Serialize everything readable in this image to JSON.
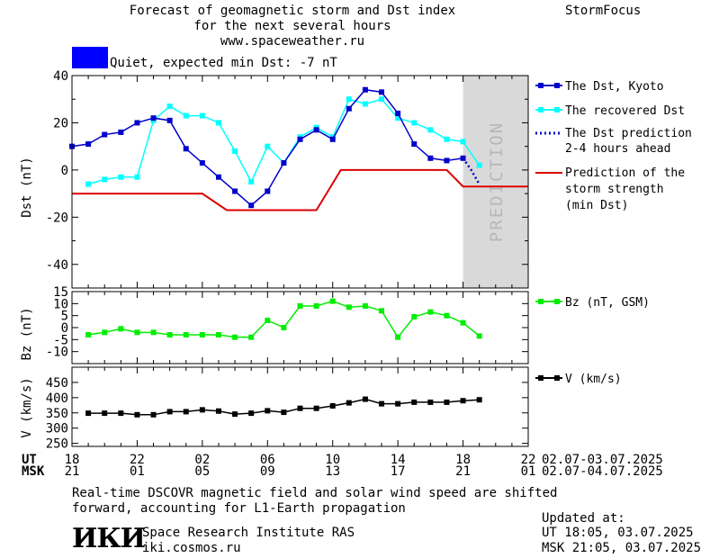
{
  "header": {
    "title_line1": "Forecast of geomagnetic storm and Dst index",
    "title_line2": "for the next several hours",
    "url": "www.spaceweather.ru",
    "brand": "StormFocus",
    "status_text": "Quiet, expected min Dst: -7 nT",
    "status_color": "#0000ff"
  },
  "prediction_label": "PREDICTION",
  "legend": {
    "dst_kyoto": "The Dst, Kyoto",
    "recovered": "The recovered Dst",
    "prediction_line1": "The Dst prediction",
    "prediction_line2": "2-4 hours ahead",
    "strength_line1": "Prediction of the",
    "strength_line2": "storm strength",
    "strength_line3": "(min Dst)",
    "bz": "Bz (nT, GSM)",
    "v": "V (km/s)"
  },
  "colors": {
    "dst_kyoto": "#0000cc",
    "recovered": "#00ffff",
    "prediction": "#0000cc",
    "strength": "#dd0000",
    "bz": "#00ee00",
    "v": "#000000",
    "prediction_band": "#d9d9d9"
  },
  "time_axis": {
    "ut_label": "UT",
    "msk_label": "MSK",
    "ut_ticks": [
      "18",
      "22",
      "02",
      "06",
      "10",
      "14",
      "18",
      "22"
    ],
    "msk_ticks": [
      "21",
      "01",
      "05",
      "09",
      "13",
      "17",
      "21",
      "01"
    ],
    "ut_range": "02.07-03.07.2025",
    "msk_range": "02.07-04.07.2025"
  },
  "footer": {
    "note_line1": "Real-time DSCOVR magnetic field and solar wind speed are shifted",
    "note_line2": "forward, accounting for L1-Earth propagation",
    "logo_text": "ИКИ",
    "institute": "Space Research Institute RAS",
    "institute_url": "iki.cosmos.ru",
    "updated_label": "Updated at:",
    "updated_ut": "UT   18:05, 03.07.2025",
    "updated_msk": "MSK 21:05, 03.07.2025"
  },
  "chart_data": [
    {
      "type": "line",
      "ylabel": "Dst (nT)",
      "ylim": [
        -50,
        40
      ],
      "yticks": [
        40,
        20,
        0,
        -20,
        -40
      ],
      "xlim": [
        0,
        28
      ],
      "prediction_band_start": 24,
      "series": [
        {
          "name": "The Dst, Kyoto",
          "x": [
            0,
            1,
            2,
            3,
            4,
            5,
            6,
            7,
            8,
            9,
            10,
            11,
            12,
            13,
            14,
            15,
            16,
            17,
            18,
            19,
            20,
            21,
            22,
            23,
            24
          ],
          "y": [
            10,
            11,
            15,
            16,
            20,
            22,
            21,
            9,
            3,
            -3,
            -9,
            -15,
            -9,
            3,
            13,
            17,
            13,
            26,
            34,
            33,
            24,
            11,
            5,
            4,
            5
          ]
        },
        {
          "name": "The recovered Dst",
          "x": [
            1,
            2,
            3,
            4,
            5,
            6,
            7,
            8,
            9,
            10,
            11,
            12,
            13,
            14,
            15,
            16,
            17,
            18,
            19,
            20,
            21,
            22,
            23,
            24,
            25
          ],
          "y": [
            -6,
            -4,
            -3,
            -3,
            21,
            27,
            23,
            23,
            20,
            8,
            -5,
            10,
            3,
            14,
            18,
            14,
            30,
            28,
            30,
            22,
            20,
            17,
            13,
            12,
            2
          ]
        },
        {
          "name": "The Dst prediction 2-4 hours ahead",
          "x": [
            24,
            24.5,
            25
          ],
          "y": [
            5,
            0,
            -6
          ]
        },
        {
          "name": "Prediction of the storm strength (min Dst)",
          "x": [
            0,
            8,
            9.5,
            15,
            16.5,
            23,
            24,
            28
          ],
          "y": [
            -10,
            -10,
            -17,
            -17,
            0,
            0,
            -7,
            -7
          ]
        }
      ]
    },
    {
      "type": "line",
      "ylabel": "Bz (nT)",
      "ylim": [
        -15,
        15
      ],
      "yticks": [
        15,
        10,
        5,
        0,
        -5,
        -10
      ],
      "xlim": [
        0,
        28
      ],
      "series": [
        {
          "name": "Bz (nT, GSM)",
          "x": [
            1,
            2,
            3,
            4,
            5,
            6,
            7,
            8,
            9,
            10,
            11,
            12,
            13,
            14,
            15,
            16,
            17,
            18,
            19,
            20,
            21,
            22,
            23,
            24,
            25
          ],
          "y": [
            -3,
            -2,
            -0.5,
            -2,
            -2,
            -3,
            -3,
            -3,
            -3,
            -4,
            -4,
            3,
            0,
            9,
            9,
            11,
            8.5,
            9,
            7,
            -4,
            4.5,
            6.5,
            5,
            2,
            -3.5
          ]
        }
      ]
    },
    {
      "type": "line",
      "ylabel": "V (km/s)",
      "ylim": [
        240,
        500
      ],
      "yticks": [
        450,
        400,
        350,
        300,
        250
      ],
      "xlim": [
        0,
        28
      ],
      "series": [
        {
          "name": "V (km/s)",
          "x": [
            1,
            2,
            3,
            4,
            5,
            6,
            7,
            8,
            9,
            10,
            11,
            12,
            13,
            14,
            15,
            16,
            17,
            18,
            19,
            20,
            21,
            22,
            23,
            24,
            25
          ],
          "y": [
            349,
            349,
            349,
            344,
            344,
            354,
            354,
            360,
            356,
            346,
            349,
            357,
            352,
            365,
            365,
            373,
            383,
            395,
            380,
            380,
            385,
            385,
            385,
            390,
            393
          ]
        }
      ]
    }
  ]
}
